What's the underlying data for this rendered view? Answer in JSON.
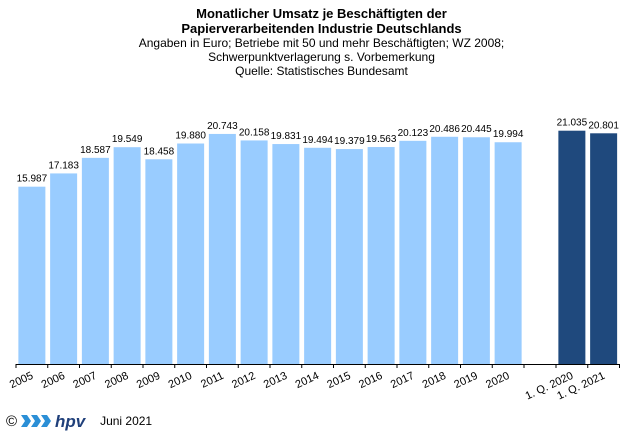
{
  "title": "Monatlicher Umsatz je Beschäftigten der",
  "title2": "Papierverarbeitenden Industrie Deutschlands",
  "subtitle": "Angaben  in Euro; Betriebe mit 50 und mehr Beschäftigten; WZ 2008;",
  "subtitle2": "Schwerpunktverlagerung   s. Vorbemerkung",
  "source": "Quelle:  Statistisches Bundesamt",
  "footer": {
    "copyright": "©",
    "logo_text": "hpv",
    "date": "Juni 2021"
  },
  "colors": {
    "annual_bar": "#99CCFF",
    "quarter_bar": "#1F497D",
    "axis": "#000000"
  },
  "chart_data": {
    "type": "bar",
    "categories": [
      "2005",
      "2006",
      "2007",
      "2008",
      "2009",
      "2010",
      "2011",
      "2012",
      "2013",
      "2014",
      "2015",
      "2016",
      "2017",
      "2018",
      "2019",
      "2020",
      "1. Q. 2020",
      "1. Q. 2021"
    ],
    "values": [
      15987,
      17183,
      18587,
      19549,
      18458,
      19880,
      20743,
      20158,
      19831,
      19494,
      19379,
      19563,
      20123,
      20486,
      20445,
      19994,
      21035,
      20801
    ],
    "value_labels": [
      "15.987",
      "17.183",
      "18.587",
      "19.549",
      "18.458",
      "19.880",
      "20.743",
      "20.158",
      "19.831",
      "19.494",
      "19.379",
      "19.563",
      "20.123",
      "20.486",
      "20.445",
      "19.994",
      "21.035",
      "20.801"
    ],
    "bar_types": [
      "annual",
      "annual",
      "annual",
      "annual",
      "annual",
      "annual",
      "annual",
      "annual",
      "annual",
      "annual",
      "annual",
      "annual",
      "annual",
      "annual",
      "annual",
      "annual",
      "quarter",
      "quarter"
    ],
    "ylim": [
      0,
      22000
    ],
    "xlabel": "",
    "ylabel": "",
    "grid": false,
    "legend": "none"
  }
}
